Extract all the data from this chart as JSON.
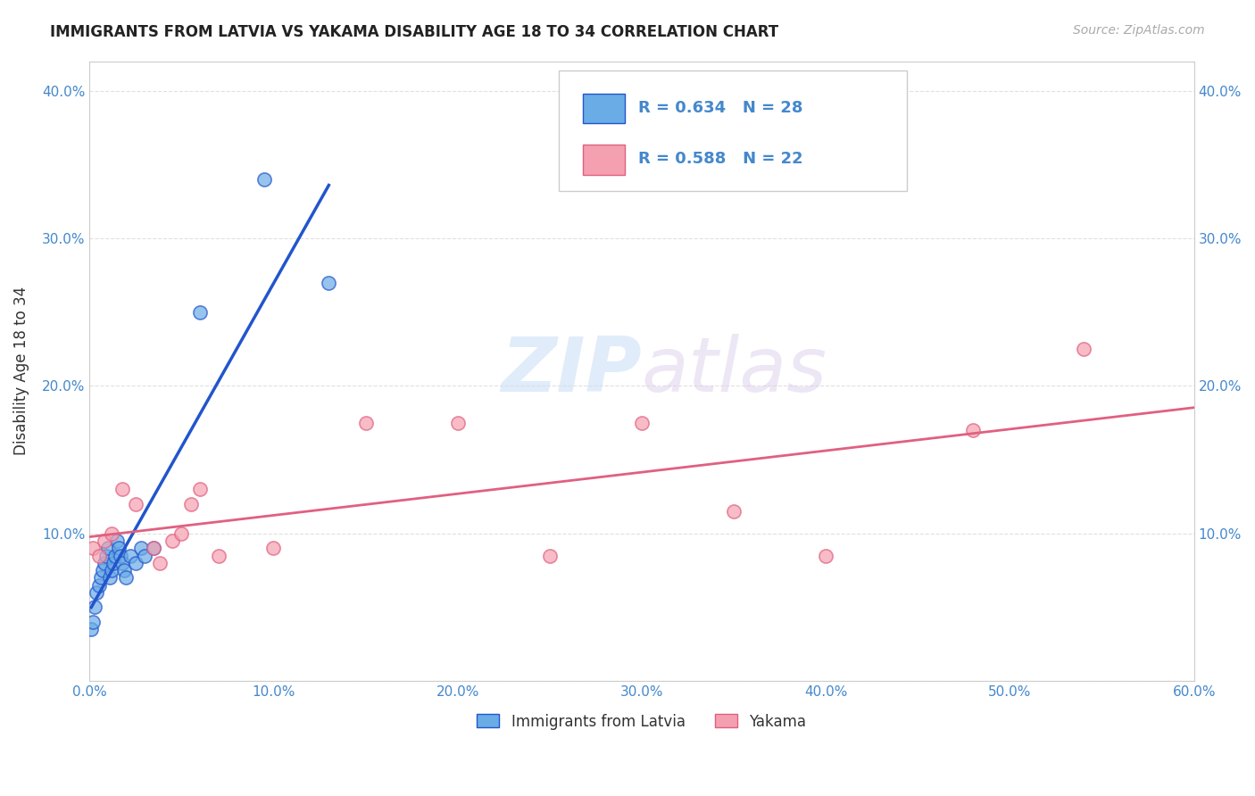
{
  "title": "IMMIGRANTS FROM LATVIA VS YAKAMA DISABILITY AGE 18 TO 34 CORRELATION CHART",
  "source": "Source: ZipAtlas.com",
  "xlabel_label": "Immigrants from Latvia",
  "ylabel_label": "Disability Age 18 to 34",
  "xlim": [
    0.0,
    0.6
  ],
  "ylim": [
    0.0,
    0.42
  ],
  "xticks": [
    0.0,
    0.1,
    0.2,
    0.3,
    0.4,
    0.5,
    0.6
  ],
  "yticks": [
    0.0,
    0.1,
    0.2,
    0.3,
    0.4
  ],
  "xtick_labels": [
    "0.0%",
    "10.0%",
    "20.0%",
    "30.0%",
    "40.0%",
    "50.0%",
    "60.0%"
  ],
  "ytick_labels": [
    "",
    "10.0%",
    "20.0%",
    "30.0%",
    "40.0%"
  ],
  "blue_R": "0.634",
  "blue_N": "28",
  "pink_R": "0.588",
  "pink_N": "22",
  "blue_color": "#6aace6",
  "pink_color": "#f4a0b0",
  "blue_line_color": "#2255cc",
  "pink_line_color": "#e06080",
  "watermark_zip": "ZIP",
  "watermark_atlas": "atlas",
  "blue_scatter_x": [
    0.001,
    0.002,
    0.003,
    0.004,
    0.005,
    0.006,
    0.007,
    0.008,
    0.009,
    0.01,
    0.011,
    0.012,
    0.013,
    0.014,
    0.015,
    0.016,
    0.017,
    0.018,
    0.019,
    0.02,
    0.022,
    0.025,
    0.028,
    0.03,
    0.035,
    0.06,
    0.095,
    0.13
  ],
  "blue_scatter_y": [
    0.035,
    0.04,
    0.05,
    0.06,
    0.065,
    0.07,
    0.075,
    0.08,
    0.085,
    0.09,
    0.07,
    0.075,
    0.08,
    0.085,
    0.095,
    0.09,
    0.085,
    0.08,
    0.075,
    0.07,
    0.085,
    0.08,
    0.09,
    0.085,
    0.09,
    0.25,
    0.34,
    0.27
  ],
  "pink_scatter_x": [
    0.002,
    0.005,
    0.008,
    0.012,
    0.018,
    0.025,
    0.035,
    0.038,
    0.045,
    0.05,
    0.055,
    0.06,
    0.07,
    0.1,
    0.15,
    0.2,
    0.25,
    0.3,
    0.35,
    0.4,
    0.48,
    0.54
  ],
  "pink_scatter_y": [
    0.09,
    0.085,
    0.095,
    0.1,
    0.13,
    0.12,
    0.09,
    0.08,
    0.095,
    0.1,
    0.12,
    0.13,
    0.085,
    0.09,
    0.175,
    0.175,
    0.085,
    0.175,
    0.115,
    0.085,
    0.17,
    0.225
  ],
  "background_color": "#ffffff"
}
